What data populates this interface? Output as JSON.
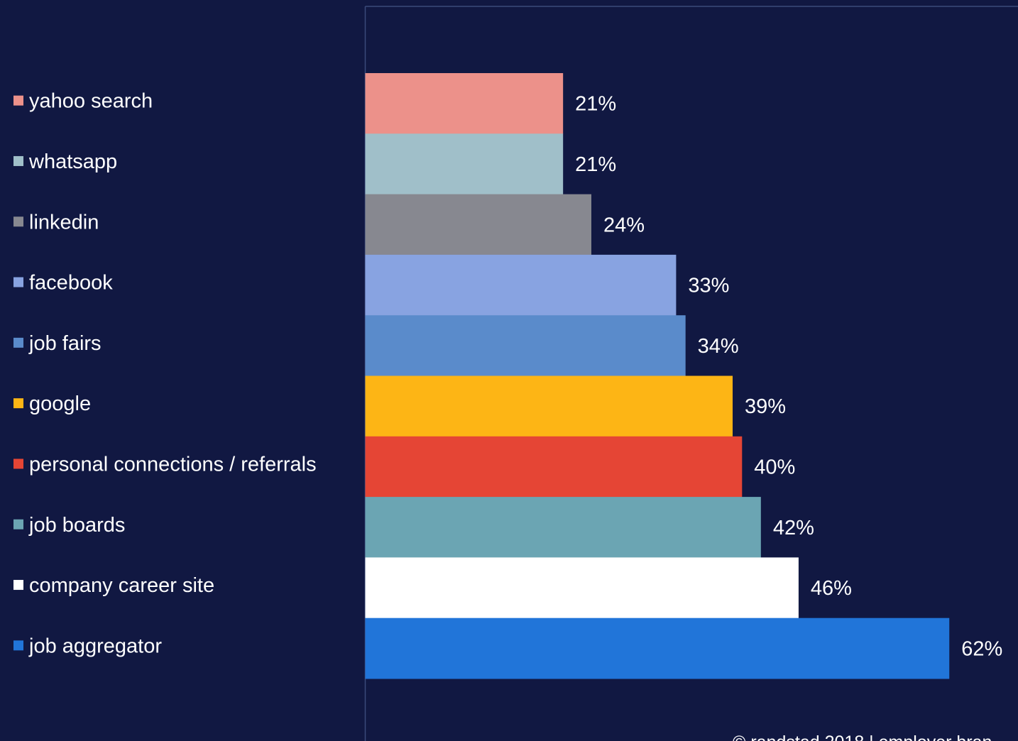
{
  "chart_data": {
    "type": "bar",
    "orientation": "horizontal",
    "categories": [
      "yahoo search",
      "whatsapp",
      "linkedin",
      "facebook",
      "job fairs",
      "google",
      "personal connections / referrals",
      "job boards",
      "company career site",
      "job aggregator"
    ],
    "values": [
      21,
      21,
      24,
      33,
      34,
      39,
      40,
      42,
      46,
      62
    ],
    "value_labels": [
      "21%",
      "21%",
      "24%",
      "33%",
      "34%",
      "39%",
      "40%",
      "42%",
      "46%",
      "62%"
    ],
    "colors": [
      "#EC918A",
      "#A0BFC9",
      "#878890",
      "#88A3E1",
      "#5A8BCB",
      "#FDB515",
      "#E54535",
      "#6BA5B3",
      "#FFFFFF",
      "#2175D9"
    ],
    "xlim": [
      0,
      70
    ],
    "legend_position": "left",
    "grid": false
  },
  "footer": {
    "text": "© randstad 2018 | employer bran"
  },
  "theme": {
    "background": "#111842",
    "axis_color": "#3A4A7A",
    "text_color": "#FFFFFF"
  }
}
